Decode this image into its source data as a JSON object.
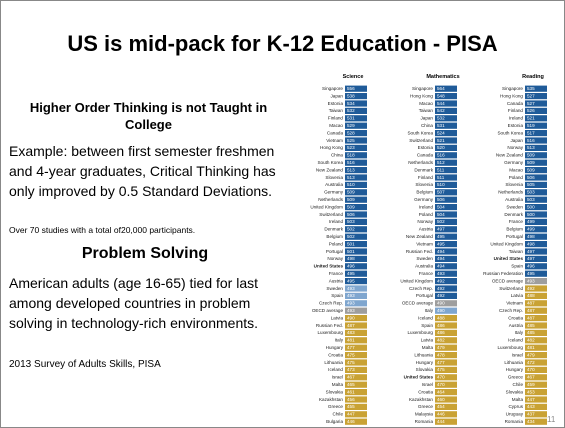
{
  "title": "US is mid-pack for  K-12 Education - PISA",
  "left": {
    "heading1": "Higher Order Thinking is not Taught in College",
    "para1": "Example: between first semester freshmen and 4-year graduates, Critical Thinking has only improved by 0.5 Standard Deviations.",
    "note1": "Over 70 studies with a total of20,000 participants.",
    "heading2": "Problem Solving",
    "para2": "American adults (age 16-65) tied for last among developed countries in problem solving in technology-rich environments.",
    "note2": "2013 Survey of Adults Skills, PISA"
  },
  "page_number": "11",
  "tables": [
    {
      "title": "Science",
      "rows": [
        [
          "Singapore",
          "556"
        ],
        [
          "Japan",
          "538"
        ],
        [
          "Estonia",
          "534"
        ],
        [
          "Taiwan",
          "532"
        ],
        [
          "Finland",
          "531"
        ],
        [
          "Macao",
          "529"
        ],
        [
          "Canada",
          "528"
        ],
        [
          "Vietnam",
          "525"
        ],
        [
          "Hong Kong",
          "523"
        ],
        [
          "China",
          "518"
        ],
        [
          "South Korea",
          "516"
        ],
        [
          "New Zealand",
          "513"
        ],
        [
          "Slovenia",
          "513"
        ],
        [
          "Australia",
          "510"
        ],
        [
          "Germany",
          "509"
        ],
        [
          "Netherlands",
          "509"
        ],
        [
          "United Kingdom",
          "509"
        ],
        [
          "Switzerland",
          "506"
        ],
        [
          "Ireland",
          "503"
        ],
        [
          "Denmark",
          "502"
        ],
        [
          "Belgium",
          "502"
        ],
        [
          "Poland",
          "501"
        ],
        [
          "Portugal",
          "501"
        ],
        [
          "Norway",
          "498"
        ],
        [
          "United States",
          "496"
        ],
        [
          "France",
          "495"
        ],
        [
          "Austria",
          "495"
        ],
        [
          "Sweden",
          "493"
        ],
        [
          "Spain",
          "493"
        ],
        [
          "Czech Rep.",
          "493"
        ],
        [
          "OECD average",
          "493"
        ],
        [
          "Latvia",
          "490"
        ],
        [
          "Russian Fed.",
          "487"
        ],
        [
          "Luxembourg",
          "483"
        ],
        [
          "Italy",
          "481"
        ],
        [
          "Hungary",
          "477"
        ],
        [
          "Croatia",
          "475"
        ],
        [
          "Lithuania",
          "475"
        ],
        [
          "Iceland",
          "473"
        ],
        [
          "Israel",
          "467"
        ],
        [
          "Malta",
          "465"
        ],
        [
          "Slovakia",
          "461"
        ],
        [
          "Kazakhstan",
          "456"
        ],
        [
          "Greece",
          "455"
        ],
        [
          "Chile",
          "447"
        ],
        [
          "Bulgaria",
          "446"
        ]
      ]
    },
    {
      "title": "Mathematics",
      "rows": [
        [
          "Singapore",
          "564"
        ],
        [
          "Hong Kong",
          "548"
        ],
        [
          "Macao",
          "544"
        ],
        [
          "Taiwan",
          "542"
        ],
        [
          "Japan",
          "532"
        ],
        [
          "China",
          "531"
        ],
        [
          "South Korea",
          "524"
        ],
        [
          "Switzerland",
          "521"
        ],
        [
          "Estonia",
          "520"
        ],
        [
          "Canada",
          "516"
        ],
        [
          "Netherlands",
          "512"
        ],
        [
          "Denmark",
          "511"
        ],
        [
          "Finland",
          "511"
        ],
        [
          "Slovenia",
          "510"
        ],
        [
          "Belgium",
          "507"
        ],
        [
          "Germany",
          "506"
        ],
        [
          "Ireland",
          "504"
        ],
        [
          "Poland",
          "504"
        ],
        [
          "Norway",
          "502"
        ],
        [
          "Austria",
          "497"
        ],
        [
          "New Zealand",
          "495"
        ],
        [
          "Vietnam",
          "495"
        ],
        [
          "Russian Fed.",
          "494"
        ],
        [
          "Sweden",
          "494"
        ],
        [
          "Australia",
          "494"
        ],
        [
          "France",
          "493"
        ],
        [
          "United Kingdom",
          "492"
        ],
        [
          "Czech Rep.",
          "492"
        ],
        [
          "Portugal",
          "492"
        ],
        [
          "OECD average",
          "490"
        ],
        [
          "Italy",
          "490"
        ],
        [
          "Iceland",
          "488"
        ],
        [
          "Spain",
          "486"
        ],
        [
          "Luxembourg",
          "486"
        ],
        [
          "Latvia",
          "482"
        ],
        [
          "Malta",
          "479"
        ],
        [
          "Lithuania",
          "478"
        ],
        [
          "Hungary",
          "477"
        ],
        [
          "Slovakia",
          "475"
        ],
        [
          "United States",
          "470"
        ],
        [
          "Israel",
          "470"
        ],
        [
          "Croatia",
          "464"
        ],
        [
          "Kazakhstan",
          "460"
        ],
        [
          "Greece",
          "454"
        ],
        [
          "Malaysia",
          "446"
        ],
        [
          "Romania",
          "444"
        ]
      ]
    },
    {
      "title": "Reading",
      "rows": [
        [
          "Singapore",
          "535"
        ],
        [
          "Hong Kong",
          "527"
        ],
        [
          "Canada",
          "527"
        ],
        [
          "Finland",
          "526"
        ],
        [
          "Ireland",
          "521"
        ],
        [
          "Estonia",
          "519"
        ],
        [
          "South Korea",
          "517"
        ],
        [
          "Japan",
          "516"
        ],
        [
          "Norway",
          "513"
        ],
        [
          "New Zealand",
          "509"
        ],
        [
          "Germany",
          "509"
        ],
        [
          "Macao",
          "509"
        ],
        [
          "Poland",
          "506"
        ],
        [
          "Slovenia",
          "505"
        ],
        [
          "Netherlands",
          "503"
        ],
        [
          "Australia",
          "503"
        ],
        [
          "Sweden",
          "500"
        ],
        [
          "Denmark",
          "500"
        ],
        [
          "France",
          "499"
        ],
        [
          "Belgium",
          "499"
        ],
        [
          "Portugal",
          "498"
        ],
        [
          "United Kingdom",
          "498"
        ],
        [
          "Taiwan",
          "497"
        ],
        [
          "United States",
          "497"
        ],
        [
          "Spain",
          "496"
        ],
        [
          "Russian Federation",
          "495"
        ],
        [
          "OECD average",
          "493"
        ],
        [
          "Switzerland",
          "492"
        ],
        [
          "Latvia",
          "488"
        ],
        [
          "Vietnam",
          "487"
        ],
        [
          "Czech Rep.",
          "487"
        ],
        [
          "Croatia",
          "487"
        ],
        [
          "Austria",
          "485"
        ],
        [
          "Italy",
          "485"
        ],
        [
          "Iceland",
          "482"
        ],
        [
          "Luxembourg",
          "481"
        ],
        [
          "Israel",
          "479"
        ],
        [
          "Lithuania",
          "472"
        ],
        [
          "Hungary",
          "470"
        ],
        [
          "Greece",
          "467"
        ],
        [
          "Chile",
          "459"
        ],
        [
          "Slovakia",
          "453"
        ],
        [
          "Malta",
          "447"
        ],
        [
          "Cyprus",
          "443"
        ],
        [
          "Uruguay",
          "437"
        ],
        [
          "Romania",
          "434"
        ]
      ]
    }
  ]
}
